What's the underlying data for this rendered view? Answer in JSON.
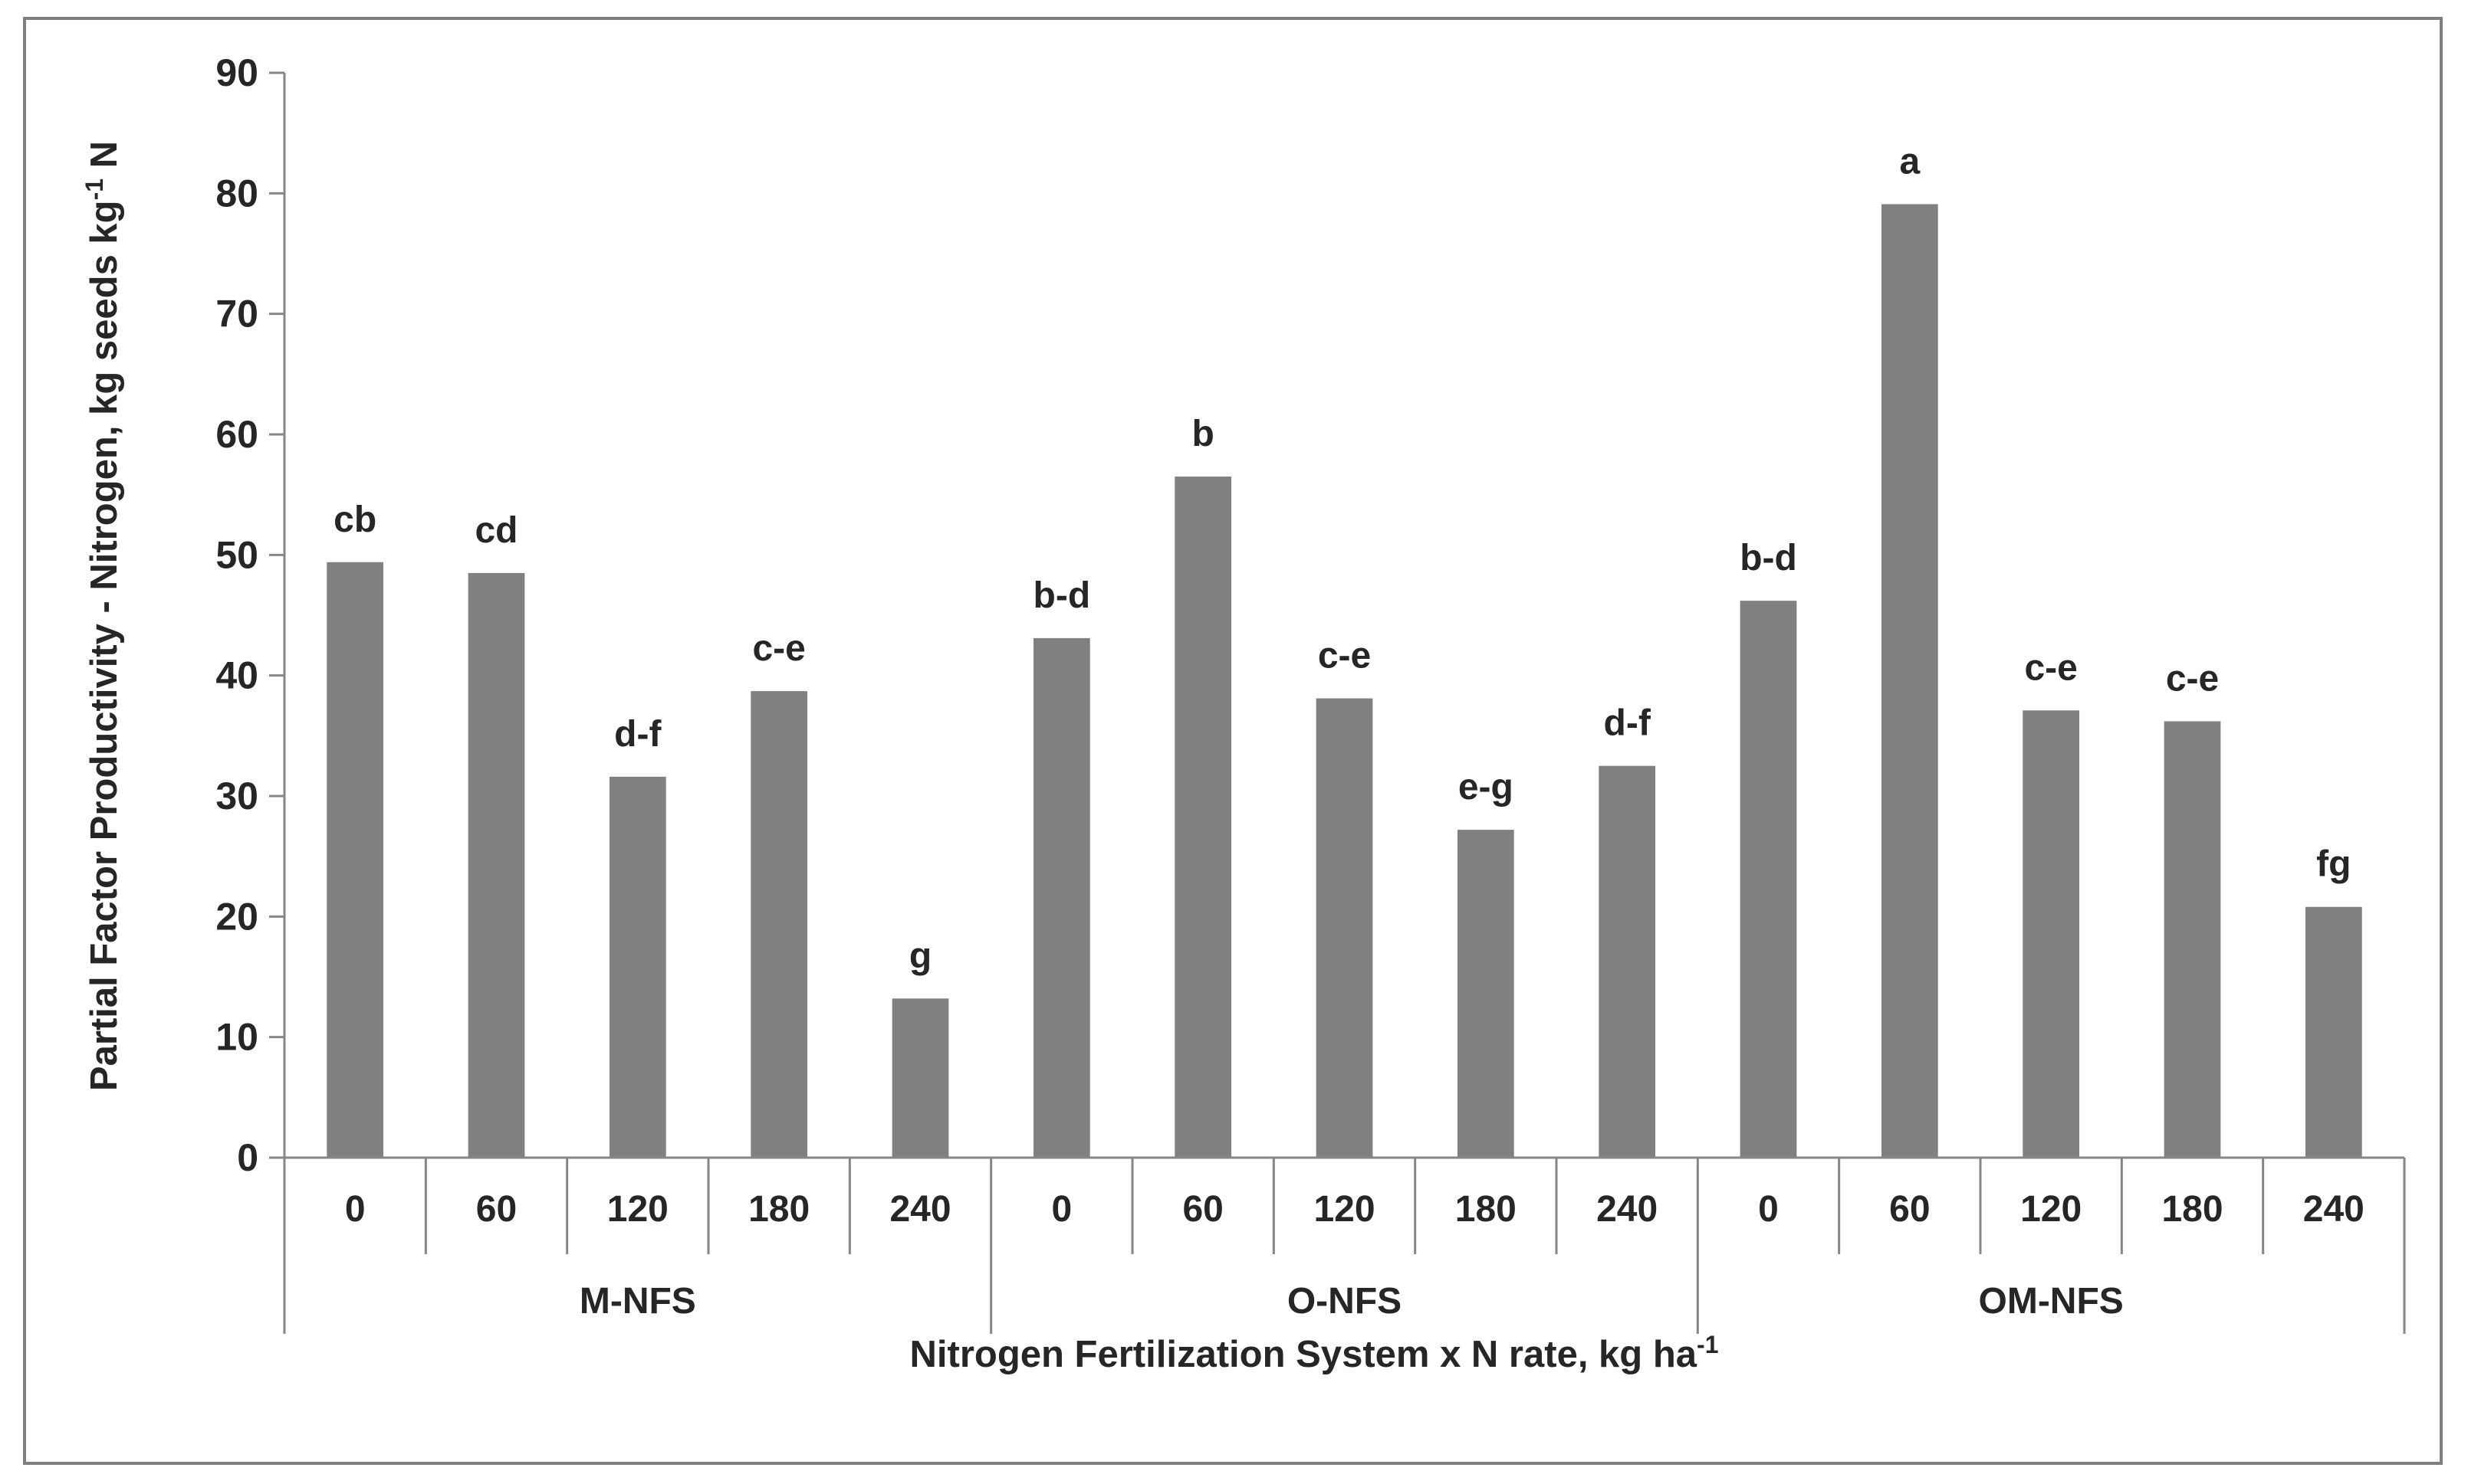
{
  "chart_data": {
    "type": "bar",
    "title": "",
    "ylabel": "Partial Factor Productivity - Nitrogen, kg seeds kg",
    "ylabel_sup": "-1",
    "ylabel_tail": " N",
    "xlabel": "Nitrogen Fertilization System x N rate, kg ha",
    "xlabel_sup": "-1",
    "ylim": [
      0,
      90
    ],
    "yticks": [
      0,
      10,
      20,
      30,
      40,
      50,
      60,
      70,
      80,
      90
    ],
    "bar_color": "#808080",
    "groups": [
      {
        "name": "M-NFS",
        "categories": [
          "0",
          "60",
          "120",
          "180",
          "240"
        ],
        "values": [
          49.4,
          48.5,
          31.6,
          38.7,
          13.2
        ],
        "labels": [
          "cb",
          "cd",
          "d-f",
          "c-e",
          "g"
        ]
      },
      {
        "name": "O-NFS",
        "categories": [
          "0",
          "60",
          "120",
          "180",
          "240"
        ],
        "values": [
          43.1,
          56.5,
          38.1,
          27.2,
          32.5
        ],
        "labels": [
          "b-d",
          "b",
          "c-e",
          "e-g",
          "d-f"
        ]
      },
      {
        "name": "OM-NFS",
        "categories": [
          "0",
          "60",
          "120",
          "180",
          "240"
        ],
        "values": [
          46.2,
          79.1,
          37.1,
          36.2,
          20.8
        ],
        "labels": [
          "b-d",
          "a",
          "c-e",
          "c-e",
          "fg"
        ]
      }
    ]
  }
}
